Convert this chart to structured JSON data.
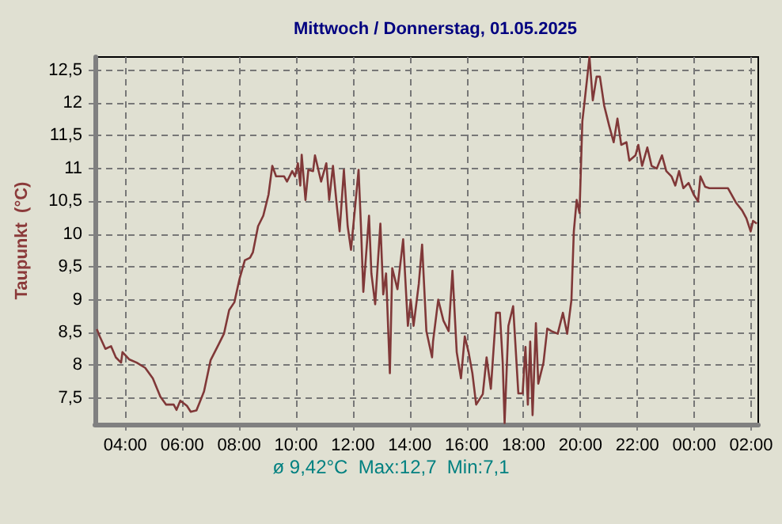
{
  "chart_data": {
    "type": "line",
    "title": "Mittwoch / Donnerstag, 01.05.2025",
    "ylabel": "Taupunkt  (°C)",
    "annotations": [
      "ø 9,42°C  Max:12,7  Min:7,1"
    ],
    "x": [
      "2025-04-30T03:00",
      "2025-04-30T03:06",
      "2025-04-30T03:18",
      "2025-04-30T03:30",
      "2025-04-30T03:40",
      "2025-04-30T03:51",
      "2025-04-30T03:54",
      "2025-04-30T04:08",
      "2025-04-30T04:24",
      "2025-04-30T04:42",
      "2025-04-30T04:58",
      "2025-04-30T05:14",
      "2025-04-30T05:26",
      "2025-04-30T05:42",
      "2025-04-30T05:48",
      "2025-04-30T05:56",
      "2025-04-30T06:10",
      "2025-04-30T06:18",
      "2025-04-30T06:30",
      "2025-04-30T06:46",
      "2025-04-30T07:00",
      "2025-04-30T07:17",
      "2025-04-30T07:28",
      "2025-04-30T07:39",
      "2025-04-30T07:50",
      "2025-04-30T08:01",
      "2025-04-30T08:12",
      "2025-04-30T08:23",
      "2025-04-30T08:29",
      "2025-04-30T08:40",
      "2025-04-30T08:51",
      "2025-04-30T09:02",
      "2025-04-30T09:10",
      "2025-04-30T09:18",
      "2025-04-30T09:35",
      "2025-04-30T09:41",
      "2025-04-30T09:52",
      "2025-04-30T09:58",
      "2025-04-30T10:04",
      "2025-04-30T10:09",
      "2025-04-30T10:12",
      "2025-04-30T10:20",
      "2025-04-30T10:26",
      "2025-04-30T10:36",
      "2025-04-30T10:40",
      "2025-04-30T10:53",
      "2025-04-30T11:04",
      "2025-04-30T11:10",
      "2025-04-30T11:18",
      "2025-04-30T11:26",
      "2025-04-30T11:32",
      "2025-04-30T11:41",
      "2025-04-30T11:49",
      "2025-04-30T11:56",
      "2025-04-30T12:05",
      "2025-04-30T12:12",
      "2025-04-30T12:17",
      "2025-04-30T12:22",
      "2025-04-30T12:34",
      "2025-04-30T12:39",
      "2025-04-30T12:47",
      "2025-04-30T12:58",
      "2025-04-30T13:04",
      "2025-04-30T13:10",
      "2025-04-30T13:18",
      "2025-04-30T13:23",
      "2025-04-30T13:34",
      "2025-04-30T13:46",
      "2025-04-30T13:56",
      "2025-04-30T14:02",
      "2025-04-30T14:08",
      "2025-04-30T14:19",
      "2025-04-30T14:26",
      "2025-04-30T14:35",
      "2025-04-30T14:47",
      "2025-04-30T14:49",
      "2025-04-30T15:00",
      "2025-04-30T15:11",
      "2025-04-30T15:22",
      "2025-04-30T15:30",
      "2025-04-30T15:39",
      "2025-04-30T15:48",
      "2025-04-30T15:56",
      "2025-04-30T16:04",
      "2025-04-30T16:12",
      "2025-04-30T16:20",
      "2025-04-30T16:34",
      "2025-04-30T16:42",
      "2025-04-30T16:51",
      "2025-04-30T17:02",
      "2025-04-30T17:10",
      "2025-04-30T17:16",
      "2025-04-30T17:20",
      "2025-04-30T17:28",
      "2025-04-30T17:38",
      "2025-04-30T17:49",
      "2025-04-30T17:58",
      "2025-04-30T18:04",
      "2025-04-30T18:09",
      "2025-04-30T18:14",
      "2025-04-30T18:19",
      "2025-04-30T18:26",
      "2025-04-30T18:31",
      "2025-04-30T18:42",
      "2025-04-30T18:50",
      "2025-04-30T18:59",
      "2025-04-30T19:12",
      "2025-04-30T19:23",
      "2025-04-30T19:32",
      "2025-04-30T19:41",
      "2025-04-30T19:46",
      "2025-04-30T19:52",
      "2025-04-30T19:58",
      "2025-04-30T20:04",
      "2025-04-30T20:09",
      "2025-04-30T20:19",
      "2025-04-30T20:26",
      "2025-04-30T20:34",
      "2025-04-30T20:41",
      "2025-04-30T20:50",
      "2025-04-30T21:01",
      "2025-04-30T21:10",
      "2025-04-30T21:18",
      "2025-04-30T21:26",
      "2025-04-30T21:37",
      "2025-04-30T21:43",
      "2025-04-30T21:56",
      "2025-04-30T22:02",
      "2025-04-30T22:10",
      "2025-04-30T22:21",
      "2025-04-30T22:30",
      "2025-04-30T22:41",
      "2025-04-30T22:52",
      "2025-04-30T23:01",
      "2025-04-30T23:12",
      "2025-04-30T23:20",
      "2025-04-30T23:28",
      "2025-04-30T23:37",
      "2025-04-30T23:48",
      "2025-04-30T23:59",
      "2025-05-01T00:08",
      "2025-05-01T00:13",
      "2025-05-01T00:23",
      "2025-05-01T00:32",
      "2025-05-01T01:11",
      "2025-05-01T01:28",
      "2025-05-01T01:41",
      "2025-05-01T01:50",
      "2025-05-01T01:59",
      "2025-05-01T02:04",
      "2025-05-01T02:12"
    ],
    "values": [
      8.55,
      8.44,
      8.25,
      8.29,
      8.12,
      8.04,
      8.2,
      8.09,
      8.04,
      7.96,
      7.8,
      7.52,
      7.4,
      7.4,
      7.32,
      7.46,
      7.38,
      7.29,
      7.31,
      7.6,
      8.08,
      8.32,
      8.48,
      8.84,
      8.96,
      9.32,
      9.6,
      9.64,
      9.72,
      10.12,
      10.28,
      10.6,
      11.04,
      10.88,
      10.88,
      10.8,
      10.96,
      10.88,
      11.08,
      10.74,
      11.21,
      10.52,
      10.98,
      10.96,
      11.2,
      10.8,
      11.08,
      10.52,
      11.04,
      10.44,
      10.04,
      10.98,
      10.12,
      9.76,
      10.44,
      10.98,
      10.12,
      9.12,
      10.28,
      9.4,
      8.93,
      10.16,
      9.08,
      9.4,
      7.88,
      9.48,
      9.16,
      9.92,
      8.6,
      9.0,
      8.6,
      9.24,
      9.84,
      8.52,
      8.12,
      8.36,
      9.0,
      8.68,
      8.52,
      9.44,
      8.2,
      7.8,
      8.44,
      8.2,
      7.88,
      7.4,
      7.56,
      8.12,
      7.64,
      8.8,
      8.8,
      8.04,
      7.12,
      8.6,
      8.9,
      7.57,
      7.57,
      8.28,
      7.4,
      8.36,
      7.24,
      8.64,
      7.72,
      8.04,
      8.56,
      8.52,
      8.48,
      8.8,
      8.48,
      9.0,
      10.04,
      10.52,
      10.32,
      11.72,
      12.04,
      12.7,
      12.04,
      12.4,
      12.4,
      11.96,
      11.64,
      11.4,
      11.76,
      11.36,
      11.4,
      11.12,
      11.2,
      11.36,
      11.04,
      11.32,
      11.04,
      11.0,
      11.2,
      10.96,
      10.88,
      10.74,
      10.96,
      10.7,
      10.78,
      10.6,
      10.5,
      10.88,
      10.72,
      10.7,
      10.7,
      10.48,
      10.36,
      10.24,
      10.04,
      10.2,
      10.16
    ],
    "color": "#803838",
    "marker": "none",
    "xlim": [
      "2025-04-30T02:56",
      "2025-05-01T02:15"
    ],
    "xticks": [
      {
        "value": "2025-04-30T04:00",
        "label": "04:00"
      },
      {
        "value": "2025-04-30T06:00",
        "label": "06:00"
      },
      {
        "value": "2025-04-30T08:00",
        "label": "08:00"
      },
      {
        "value": "2025-04-30T10:00",
        "label": "10:00"
      },
      {
        "value": "2025-04-30T12:00",
        "label": "12:00"
      },
      {
        "value": "2025-04-30T14:00",
        "label": "14:00"
      },
      {
        "value": "2025-04-30T16:00",
        "label": "16:00"
      },
      {
        "value": "2025-04-30T18:00",
        "label": "18:00"
      },
      {
        "value": "2025-04-30T20:00",
        "label": "20:00"
      },
      {
        "value": "2025-04-30T22:00",
        "label": "22:00"
      },
      {
        "value": "2025-05-01T00:00",
        "label": "00:00"
      },
      {
        "value": "2025-05-01T02:00",
        "label": "02:00"
      }
    ],
    "ylim": [
      7.1,
      12.7
    ],
    "yticks": [
      {
        "value": 7.5,
        "label": "7,5"
      },
      8,
      {
        "value": 8.5,
        "label": "8,5"
      },
      9,
      {
        "value": 9.5,
        "label": "9,5"
      },
      10,
      {
        "value": 10.5,
        "label": "10,5"
      },
      11,
      {
        "value": 11.5,
        "label": "11,5"
      },
      12,
      {
        "value": 12.5,
        "label": "12,5"
      }
    ],
    "grid": true
  }
}
